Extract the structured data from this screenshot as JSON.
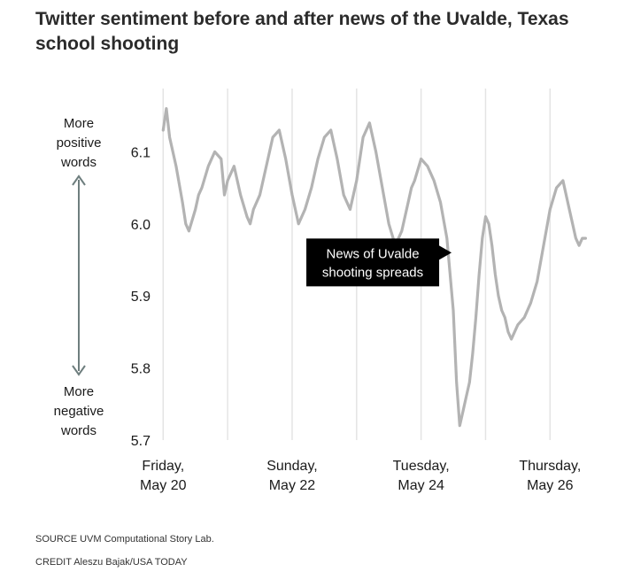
{
  "chart_data": {
    "type": "line",
    "title": "Twitter sentiment before and after news of the Uvalde, Texas school shooting",
    "xlabel": "",
    "ylabel": "",
    "xlim_days": [
      0,
      6.7
    ],
    "ylim": [
      5.7,
      6.2
    ],
    "y_ticks": [
      "6.1",
      "6.0",
      "5.9",
      "5.8",
      "5.7"
    ],
    "y_tick_values": [
      6.1,
      6.0,
      5.9,
      5.8,
      5.7
    ],
    "x_ticks": [
      {
        "line1": "Friday,",
        "line2": "May 20",
        "day": 0.1
      },
      {
        "line1": "Sunday,",
        "line2": "May 22",
        "day": 2.1
      },
      {
        "line1": "Tuesday,",
        "line2": "May 24",
        "day": 4.1
      },
      {
        "line1": "Thursday,",
        "line2": "May 26",
        "day": 6.1
      }
    ],
    "gridline_days": [
      0,
      1,
      2,
      3,
      4,
      5,
      6
    ],
    "series": [
      {
        "name": "Sentiment",
        "color": "#b3b3b3",
        "x": [
          0.1,
          0.15,
          0.2,
          0.3,
          0.4,
          0.45,
          0.5,
          0.6,
          0.65,
          0.7,
          0.8,
          0.9,
          1.0,
          1.05,
          1.1,
          1.2,
          1.3,
          1.4,
          1.45,
          1.5,
          1.6,
          1.7,
          1.8,
          1.9,
          2.0,
          2.1,
          2.2,
          2.3,
          2.4,
          2.5,
          2.6,
          2.7,
          2.8,
          2.9,
          3.0,
          3.1,
          3.2,
          3.3,
          3.4,
          3.5,
          3.6,
          3.7,
          3.8,
          3.9,
          3.95,
          4.0,
          4.1,
          4.2,
          4.3,
          4.4,
          4.5,
          4.6,
          4.65,
          4.7,
          4.75,
          4.8,
          4.85,
          4.9,
          4.95,
          5.0,
          5.05,
          5.1,
          5.15,
          5.2,
          5.25,
          5.3,
          5.35,
          5.4,
          5.45,
          5.5,
          5.6,
          5.7,
          5.8,
          5.9,
          6.0,
          6.1,
          6.2,
          6.3,
          6.4,
          6.5,
          6.55,
          6.6,
          6.65
        ],
        "values": [
          6.13,
          6.16,
          6.12,
          6.08,
          6.03,
          6.0,
          5.99,
          6.02,
          6.04,
          6.05,
          6.08,
          6.1,
          6.09,
          6.04,
          6.06,
          6.08,
          6.04,
          6.01,
          6.0,
          6.02,
          6.04,
          6.08,
          6.12,
          6.13,
          6.09,
          6.04,
          6.0,
          6.02,
          6.05,
          6.09,
          6.12,
          6.13,
          6.09,
          6.04,
          6.02,
          6.06,
          6.12,
          6.14,
          6.1,
          6.05,
          6.0,
          5.97,
          5.99,
          6.03,
          6.05,
          6.06,
          6.09,
          6.08,
          6.06,
          6.03,
          5.98,
          5.88,
          5.78,
          5.72,
          5.74,
          5.76,
          5.78,
          5.82,
          5.87,
          5.93,
          5.98,
          6.01,
          6.0,
          5.97,
          5.93,
          5.9,
          5.88,
          5.87,
          5.85,
          5.84,
          5.86,
          5.87,
          5.89,
          5.92,
          5.97,
          6.02,
          6.05,
          6.06,
          6.02,
          5.98,
          5.97,
          5.98,
          5.98
        ]
      }
    ],
    "annotation": {
      "line1": "News of Uvalde",
      "line2": "shooting spreads",
      "day": 4.6,
      "value": 5.96
    },
    "side_labels": {
      "top": [
        "More",
        "positive",
        "words"
      ],
      "bottom": [
        "More",
        "negative",
        "words"
      ]
    }
  },
  "footer": {
    "source": "SOURCE UVM Computational Story Lab.",
    "credit": "CREDIT Aleszu Bajak/USA TODAY"
  }
}
